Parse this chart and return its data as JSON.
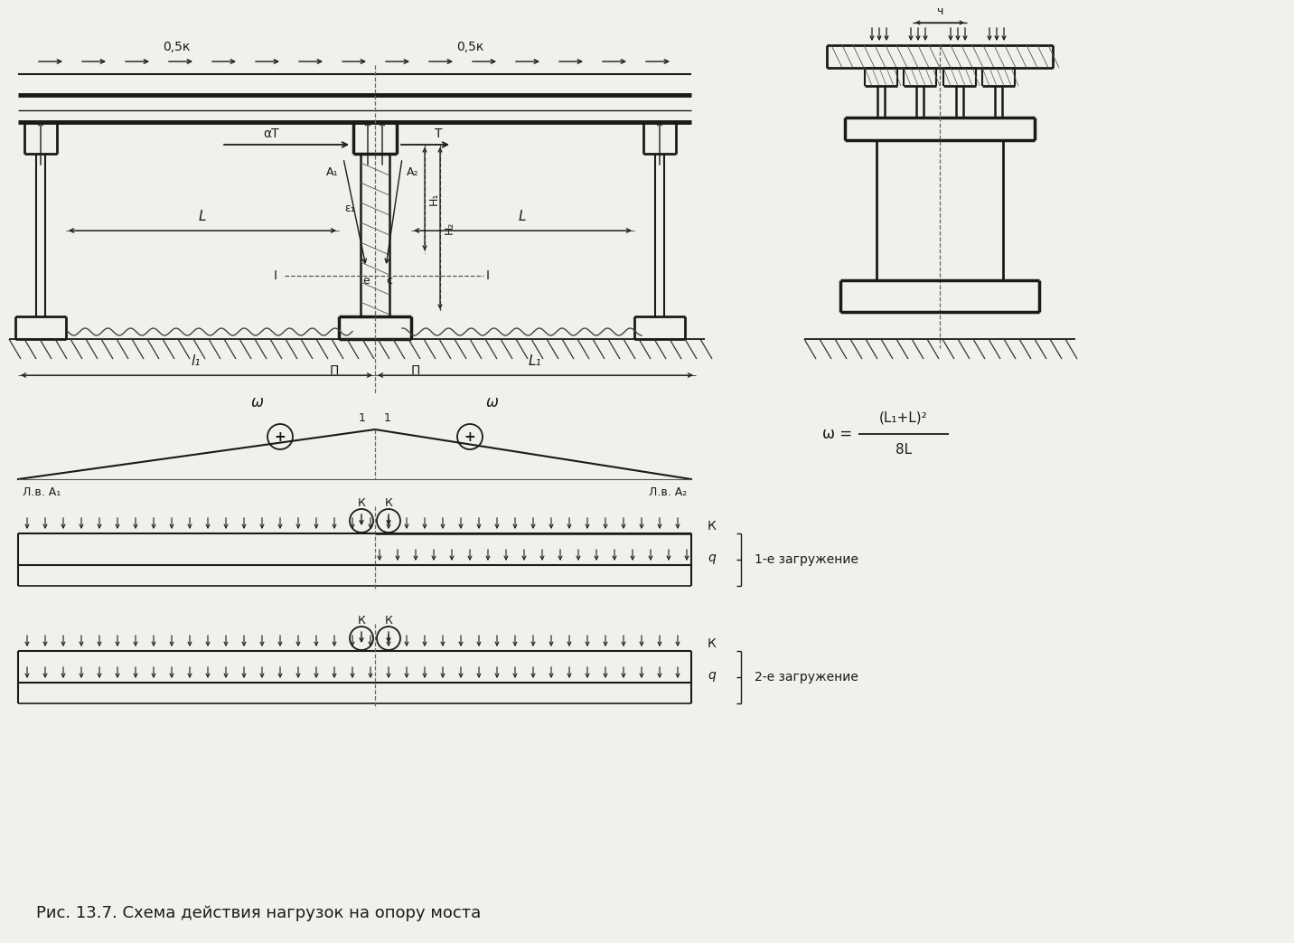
{
  "bg_color": "#f2f0eb",
  "line_color": "#1a1a1a",
  "title": "Рис. 13.7. Схема действия нагрузок на опору моста",
  "label_05k_left": "0,5к",
  "label_05k_right": "0,5к",
  "label_aT": "αT",
  "label_T": "T",
  "label_A1": "A₁",
  "label_A2": "A₂",
  "label_e1": "ε₁",
  "label_e": "e",
  "label_c": "c",
  "label_H1": "H₁",
  "label_H2": "H₂",
  "label_L": "L",
  "label_l1": "l₁",
  "label_L1": "L₁",
  "label_I": "I",
  "label_II": "П",
  "label_omega": "ω",
  "label_lv_A1": "Л.в. A₁",
  "label_lv_A2": "Л.в. A₂",
  "label_K": "К",
  "label_q": "q",
  "label_load1": "1-е загружение",
  "label_load2": "2-е загружение",
  "formula_omega": "ω =",
  "formula_num": "(L₁+L)²",
  "formula_den": "8L",
  "label_ch": "ч"
}
